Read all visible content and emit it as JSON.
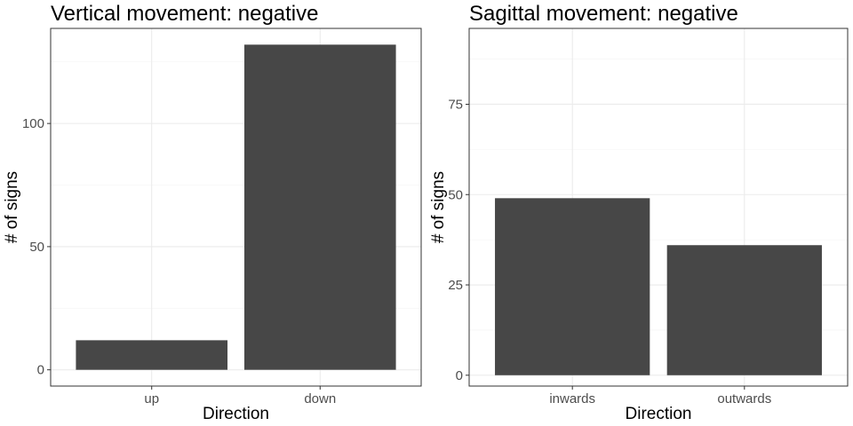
{
  "chart_data": [
    {
      "type": "bar",
      "title": "Vertical movement: negative",
      "xlabel": "Direction",
      "ylabel": "# of signs",
      "categories": [
        "up",
        "down"
      ],
      "values": [
        12,
        132
      ],
      "ylim": [
        -6.6,
        138.6
      ],
      "yticks": [
        0,
        50,
        100
      ],
      "grid": true,
      "bar_color": "#474747"
    },
    {
      "type": "bar",
      "title": "Sagittal movement: negative",
      "xlabel": "Direction",
      "ylabel": "# of signs",
      "categories": [
        "inwards",
        "outwards"
      ],
      "values": [
        49,
        36
      ],
      "ylim": [
        -3,
        96
      ],
      "yticks": [
        0,
        25,
        50,
        75
      ],
      "grid": true,
      "bar_color": "#474747"
    }
  ]
}
